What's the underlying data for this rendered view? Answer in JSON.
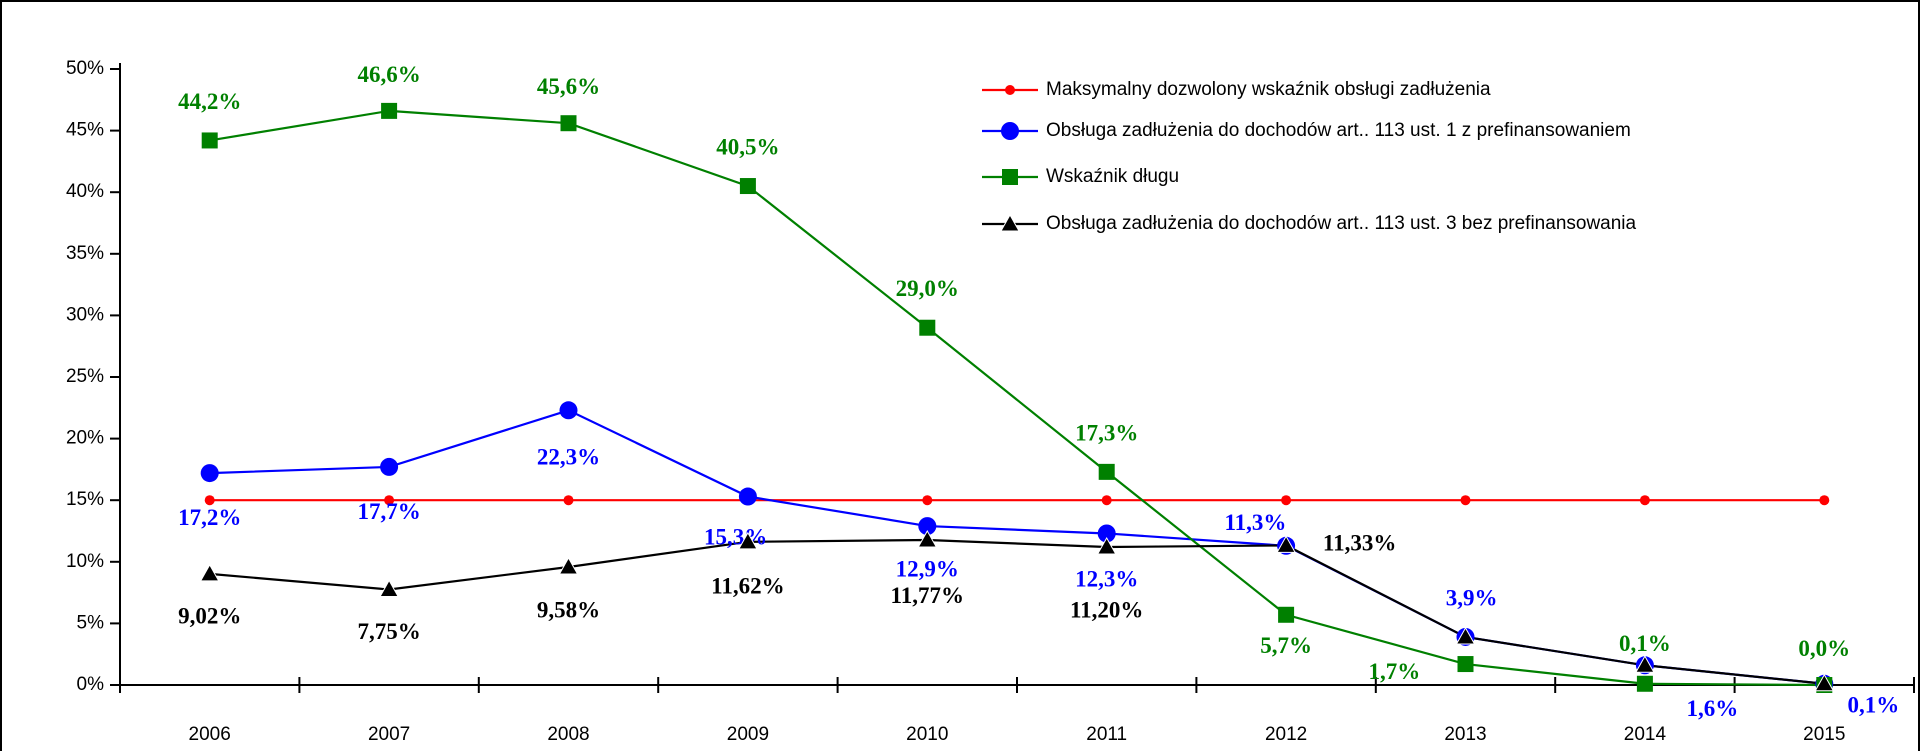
{
  "chart_data": {
    "type": "line",
    "categories": [
      "2006",
      "2007",
      "2008",
      "2009",
      "2010",
      "2011",
      "2012",
      "2013",
      "2014",
      "2015"
    ],
    "ylim": [
      0,
      50
    ],
    "yticks": [
      {
        "value": 0,
        "label": "0%"
      },
      {
        "value": 5,
        "label": "5%"
      },
      {
        "value": 10,
        "label": "10%"
      },
      {
        "value": 15,
        "label": "15%"
      },
      {
        "value": 20,
        "label": "20%"
      },
      {
        "value": 25,
        "label": "25%"
      },
      {
        "value": 30,
        "label": "30%"
      },
      {
        "value": 35,
        "label": "35%"
      },
      {
        "value": 40,
        "label": "40%"
      },
      {
        "value": 45,
        "label": "45%"
      },
      {
        "value": 50,
        "label": "50%"
      }
    ],
    "legend": "top-right",
    "series": [
      {
        "name": "Maksymalny dozwolony wskaźnik obsługi zadłużenia",
        "color": "#ff0000",
        "marker": "circle-small",
        "values": [
          15,
          15,
          15,
          15,
          15,
          15,
          15,
          15,
          15,
          15
        ]
      },
      {
        "name": "Obsługa zadłużenia do dochodów art.. 113 ust. 1 z prefinansowaniem",
        "color": "#0000ff",
        "marker": "circle",
        "values": [
          17.2,
          17.7,
          22.3,
          15.3,
          12.9,
          12.3,
          11.3,
          3.9,
          1.6,
          0.1
        ],
        "value_labels": [
          "17,2%",
          "17,7%",
          "22,3%",
          "15,3%",
          "12,9%",
          "12,3%",
          "11,3%",
          "3,9%",
          "1,6%",
          "0,1%"
        ]
      },
      {
        "name": "Wskaźnik długu",
        "color": "#008000",
        "marker": "square",
        "values": [
          44.2,
          46.6,
          45.6,
          40.5,
          29.0,
          17.3,
          5.7,
          1.7,
          0.1,
          0.0
        ],
        "value_labels": [
          "44,2%",
          "46,6%",
          "45,6%",
          "40,5%",
          "29,0%",
          "17,3%",
          "5,7%",
          "1,7%",
          "0,1%",
          "0,0%"
        ]
      },
      {
        "name": "Obsługa zadłużenia do dochodów art.. 113 ust. 3 bez prefinansowania",
        "color": "#000000",
        "marker": "triangle",
        "values": [
          9.02,
          7.75,
          9.58,
          11.62,
          11.77,
          11.2,
          11.33,
          3.9,
          1.6,
          0.1
        ],
        "value_labels": [
          "9,02%",
          "7,75%",
          "9,58%",
          "11,62%",
          "11,77%",
          "11,20%",
          "11,33%",
          null,
          null,
          null
        ]
      }
    ]
  }
}
